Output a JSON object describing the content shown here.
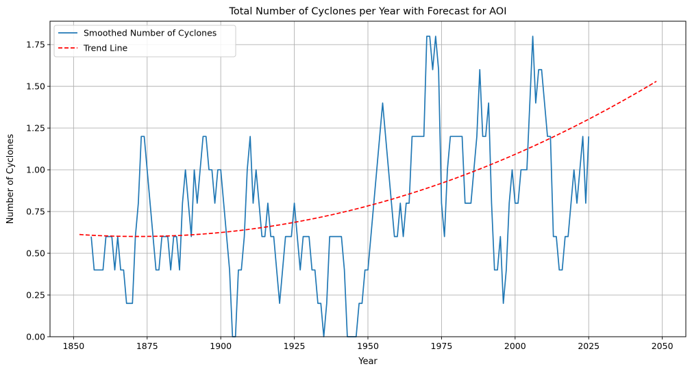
{
  "chart_data": {
    "type": "line",
    "title": "Total Number of Cyclones per Year with Forecast for AOI",
    "xlabel": "Year",
    "ylabel": "Number of Cyclones",
    "xlim": [
      1842,
      2058
    ],
    "ylim": [
      0,
      1.89
    ],
    "xticks": [
      1850,
      1875,
      1900,
      1925,
      1950,
      1975,
      2000,
      2025,
      2050
    ],
    "yticks": [
      0.0,
      0.25,
      0.5,
      0.75,
      1.0,
      1.25,
      1.5,
      1.75
    ],
    "ytick_labels": [
      "0.00",
      "0.25",
      "0.50",
      "0.75",
      "1.00",
      "1.25",
      "1.50",
      "1.75"
    ],
    "grid": true,
    "legend_position": "top-left",
    "series": [
      {
        "name": "Smoothed Number of Cyclones",
        "color": "#1f77b4",
        "style": "solid",
        "points": [
          [
            1856,
            0.6
          ],
          [
            1857,
            0.4
          ],
          [
            1860,
            0.4
          ],
          [
            1861,
            0.6
          ],
          [
            1863,
            0.6
          ],
          [
            1864,
            0.4
          ],
          [
            1865,
            0.6
          ],
          [
            1866,
            0.4
          ],
          [
            1867,
            0.4
          ],
          [
            1868,
            0.2
          ],
          [
            1870,
            0.2
          ],
          [
            1871,
            0.6
          ],
          [
            1872,
            0.8
          ],
          [
            1873,
            1.2
          ],
          [
            1874,
            1.2
          ],
          [
            1875,
            1.0
          ],
          [
            1876,
            0.8
          ],
          [
            1877,
            0.6
          ],
          [
            1878,
            0.4
          ],
          [
            1879,
            0.4
          ],
          [
            1880,
            0.6
          ],
          [
            1882,
            0.6
          ],
          [
            1883,
            0.4
          ],
          [
            1884,
            0.6
          ],
          [
            1885,
            0.6
          ],
          [
            1886,
            0.4
          ],
          [
            1887,
            0.8
          ],
          [
            1888,
            1.0
          ],
          [
            1889,
            0.8
          ],
          [
            1890,
            0.6
          ],
          [
            1891,
            1.0
          ],
          [
            1892,
            0.8
          ],
          [
            1893,
            1.0
          ],
          [
            1894,
            1.2
          ],
          [
            1895,
            1.2
          ],
          [
            1896,
            1.0
          ],
          [
            1897,
            1.0
          ],
          [
            1898,
            0.8
          ],
          [
            1899,
            1.0
          ],
          [
            1900,
            1.0
          ],
          [
            1901,
            0.8
          ],
          [
            1902,
            0.6
          ],
          [
            1903,
            0.4
          ],
          [
            1904,
            0.0
          ],
          [
            1905,
            0.0
          ],
          [
            1906,
            0.4
          ],
          [
            1907,
            0.4
          ],
          [
            1908,
            0.6
          ],
          [
            1909,
            1.0
          ],
          [
            1910,
            1.2
          ],
          [
            1911,
            0.8
          ],
          [
            1912,
            1.0
          ],
          [
            1913,
            0.8
          ],
          [
            1914,
            0.6
          ],
          [
            1915,
            0.6
          ],
          [
            1916,
            0.8
          ],
          [
            1917,
            0.6
          ],
          [
            1918,
            0.6
          ],
          [
            1919,
            0.4
          ],
          [
            1920,
            0.2
          ],
          [
            1921,
            0.4
          ],
          [
            1922,
            0.6
          ],
          [
            1924,
            0.6
          ],
          [
            1925,
            0.8
          ],
          [
            1926,
            0.6
          ],
          [
            1927,
            0.4
          ],
          [
            1928,
            0.6
          ],
          [
            1930,
            0.6
          ],
          [
            1931,
            0.4
          ],
          [
            1932,
            0.4
          ],
          [
            1933,
            0.2
          ],
          [
            1934,
            0.2
          ],
          [
            1935,
            0.0
          ],
          [
            1936,
            0.2
          ],
          [
            1937,
            0.6
          ],
          [
            1941,
            0.6
          ],
          [
            1942,
            0.4
          ],
          [
            1943,
            0.0
          ],
          [
            1946,
            0.0
          ],
          [
            1947,
            0.2
          ],
          [
            1948,
            0.2
          ],
          [
            1949,
            0.4
          ],
          [
            1950,
            0.4
          ],
          [
            1951,
            0.6
          ],
          [
            1952,
            0.8
          ],
          [
            1953,
            1.0
          ],
          [
            1954,
            1.2
          ],
          [
            1955,
            1.4
          ],
          [
            1956,
            1.2
          ],
          [
            1957,
            1.0
          ],
          [
            1958,
            0.8
          ],
          [
            1959,
            0.6
          ],
          [
            1960,
            0.6
          ],
          [
            1961,
            0.8
          ],
          [
            1962,
            0.6
          ],
          [
            1963,
            0.8
          ],
          [
            1964,
            0.8
          ],
          [
            1965,
            1.2
          ],
          [
            1969,
            1.2
          ],
          [
            1970,
            1.8
          ],
          [
            1971,
            1.8
          ],
          [
            1972,
            1.6
          ],
          [
            1973,
            1.8
          ],
          [
            1974,
            1.6
          ],
          [
            1975,
            0.8
          ],
          [
            1976,
            0.6
          ],
          [
            1977,
            1.0
          ],
          [
            1978,
            1.2
          ],
          [
            1982,
            1.2
          ],
          [
            1983,
            0.8
          ],
          [
            1985,
            0.8
          ],
          [
            1987,
            1.2
          ],
          [
            1988,
            1.6
          ],
          [
            1989,
            1.2
          ],
          [
            1990,
            1.2
          ],
          [
            1991,
            1.4
          ],
          [
            1992,
            0.8
          ],
          [
            1993,
            0.4
          ],
          [
            1994,
            0.4
          ],
          [
            1995,
            0.6
          ],
          [
            1996,
            0.2
          ],
          [
            1997,
            0.4
          ],
          [
            1998,
            0.8
          ],
          [
            1999,
            1.0
          ],
          [
            2000,
            0.8
          ],
          [
            2001,
            0.8
          ],
          [
            2002,
            1.0
          ],
          [
            2004,
            1.0
          ],
          [
            2005,
            1.4
          ],
          [
            2006,
            1.8
          ],
          [
            2007,
            1.4
          ],
          [
            2008,
            1.6
          ],
          [
            2009,
            1.6
          ],
          [
            2010,
            1.4
          ],
          [
            2011,
            1.2
          ],
          [
            2012,
            1.2
          ],
          [
            2013,
            0.6
          ],
          [
            2014,
            0.6
          ],
          [
            2015,
            0.4
          ],
          [
            2016,
            0.4
          ],
          [
            2017,
            0.6
          ],
          [
            2018,
            0.6
          ],
          [
            2019,
            0.8
          ],
          [
            2020,
            1.0
          ],
          [
            2021,
            0.8
          ],
          [
            2022,
            1.0
          ],
          [
            2023,
            1.2
          ],
          [
            2024,
            0.8
          ],
          [
            2025,
            1.2
          ]
        ]
      },
      {
        "name": "Trend Line",
        "color": "#ff0000",
        "style": "dashed",
        "points": [
          [
            1852,
            0.612
          ],
          [
            1862,
            0.603
          ],
          [
            1872,
            0.601
          ],
          [
            1882,
            0.604
          ],
          [
            1892,
            0.613
          ],
          [
            1902,
            0.628
          ],
          [
            1912,
            0.649
          ],
          [
            1922,
            0.676
          ],
          [
            1932,
            0.709
          ],
          [
            1942,
            0.748
          ],
          [
            1952,
            0.793
          ],
          [
            1962,
            0.844
          ],
          [
            1972,
            0.901
          ],
          [
            1982,
            0.964
          ],
          [
            1992,
            1.033
          ],
          [
            2002,
            1.108
          ],
          [
            2012,
            1.189
          ],
          [
            2022,
            1.276
          ],
          [
            2032,
            1.369
          ],
          [
            2048,
            1.375
          ]
        ]
      }
    ]
  }
}
